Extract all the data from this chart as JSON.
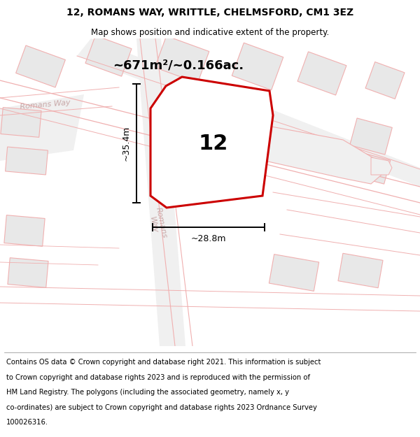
{
  "title": "12, ROMANS WAY, WRITTLE, CHELMSFORD, CM1 3EZ",
  "subtitle": "Map shows position and indicative extent of the property.",
  "footer_lines": [
    "Contains OS data © Crown copyright and database right 2021. This information is subject",
    "to Crown copyright and database rights 2023 and is reproduced with the permission of",
    "HM Land Registry. The polygons (including the associated geometry, namely x, y",
    "co-ordinates) are subject to Crown copyright and database rights 2023 Ordnance Survey",
    "100026316."
  ],
  "map_bg": "#ffffff",
  "building_fill": "#e8e8e8",
  "building_edge": "#f0b0b0",
  "road_line_color": "#f0b0b0",
  "property_line_color": "#cc0000",
  "property_fill": "#ffffff",
  "road_label_color": "#c8a8a8",
  "area_text": "~671m²/~0.166ac.",
  "label_12": "12",
  "dim_height": "~35.4m",
  "dim_width": "~28.8m",
  "road1_label": "Romans Way",
  "road2_label": "Romans Way",
  "road3_label": "Romans\nWay",
  "title_fontsize": 10,
  "subtitle_fontsize": 8.5,
  "footer_fontsize": 7.2
}
